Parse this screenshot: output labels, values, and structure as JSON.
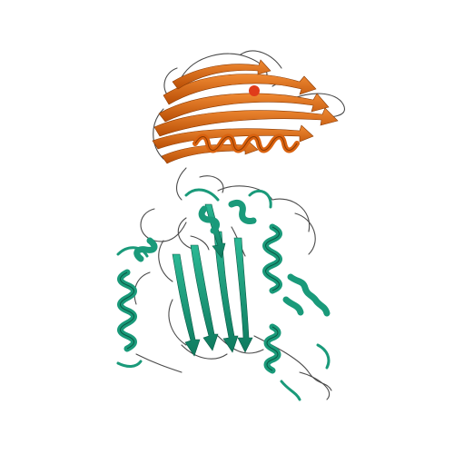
{
  "scene": {
    "background": "#ffffff",
    "description_type": "protein cartoon ribbon rendering",
    "chains": [
      {
        "id": "A",
        "color": "#d9620f",
        "style": "beta-sheet and helix ribbon"
      },
      {
        "id": "B",
        "color": "#1a9a7a",
        "style": "helix and beta-sheet ribbon"
      }
    ],
    "coil_color": "#444444"
  }
}
